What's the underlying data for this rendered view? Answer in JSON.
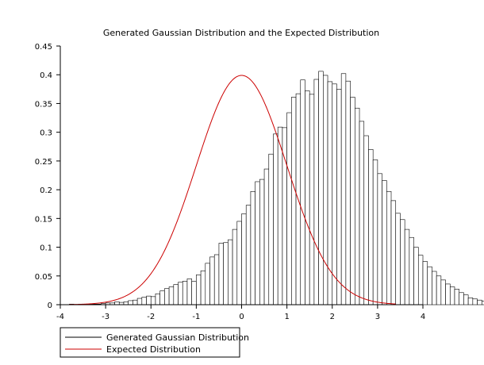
{
  "chart_data": {
    "type": "bar",
    "title": "Generated Gaussian Distribution and the Expected Distribution",
    "xlabel": "",
    "ylabel": "",
    "xlim": [
      -4,
      4
    ],
    "ylim": [
      0,
      0.45
    ],
    "x_ticks": [
      "-4",
      "-3",
      "-2",
      "-1",
      "0",
      "1",
      "2",
      "3",
      "4"
    ],
    "y_ticks": [
      "0",
      "0.05",
      "0.1",
      "0.15",
      "0.2",
      "0.25",
      "0.3",
      "0.35",
      "0.4",
      "0.45"
    ],
    "grid": false,
    "legend_position": "bottom-left",
    "series": [
      {
        "name": "Generated Gaussian Distribution",
        "kind": "histogram",
        "color": "#000000",
        "fill": "#ffffff",
        "bin_start": -3.8,
        "bin_width": 0.1,
        "values": [
          0.001,
          0.0,
          0.001,
          0.0,
          0.001,
          0.001,
          0.001,
          0.002,
          0.003,
          0.003,
          0.005,
          0.004,
          0.005,
          0.007,
          0.008,
          0.011,
          0.013,
          0.015,
          0.014,
          0.019,
          0.024,
          0.028,
          0.031,
          0.035,
          0.039,
          0.041,
          0.045,
          0.041,
          0.052,
          0.059,
          0.072,
          0.083,
          0.087,
          0.107,
          0.108,
          0.113,
          0.131,
          0.145,
          0.158,
          0.173,
          0.197,
          0.214,
          0.218,
          0.236,
          0.262,
          0.297,
          0.309,
          0.308,
          0.334,
          0.361,
          0.367,
          0.391,
          0.372,
          0.366,
          0.392,
          0.406,
          0.399,
          0.388,
          0.384,
          0.375,
          0.402,
          0.389,
          0.361,
          0.342,
          0.319,
          0.294,
          0.27,
          0.252,
          0.228,
          0.216,
          0.197,
          0.181,
          0.159,
          0.148,
          0.131,
          0.117,
          0.1,
          0.086,
          0.075,
          0.066,
          0.058,
          0.05,
          0.043,
          0.036,
          0.031,
          0.027,
          0.021,
          0.017,
          0.012,
          0.01,
          0.008,
          0.006,
          0.004,
          0.003,
          0.002,
          0.001,
          0.001,
          0.0,
          0.0,
          0.0,
          0.0,
          0.003,
          0.005
        ]
      },
      {
        "name": "Expected Distribution",
        "kind": "line",
        "color": "#cc0000",
        "function": "standard normal pdf",
        "x_range": [
          -3.8,
          3.4
        ]
      }
    ]
  }
}
